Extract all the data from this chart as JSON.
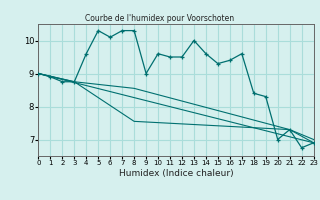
{
  "title": "Courbe de l'humidex pour Voorschoten",
  "xlabel": "Humidex (Indice chaleur)",
  "background_color": "#d6f0ee",
  "grid_color": "#aaddda",
  "line_color": "#007070",
  "xlim": [
    0,
    23
  ],
  "ylim": [
    6.5,
    10.5
  ],
  "yticks": [
    7,
    8,
    9,
    10
  ],
  "xticks": [
    0,
    1,
    2,
    3,
    4,
    5,
    6,
    7,
    8,
    9,
    10,
    11,
    12,
    13,
    14,
    15,
    16,
    17,
    18,
    19,
    20,
    21,
    22,
    23
  ],
  "series1_x": [
    0,
    1,
    2,
    3,
    4,
    5,
    6,
    7,
    8,
    9,
    10,
    11,
    12,
    13,
    14,
    15,
    16,
    17,
    18,
    19,
    20,
    21,
    22,
    23
  ],
  "series1_y": [
    9.0,
    8.9,
    8.75,
    8.75,
    9.6,
    10.3,
    10.1,
    10.3,
    10.3,
    9.0,
    9.6,
    9.5,
    9.5,
    10.0,
    9.6,
    9.3,
    9.4,
    9.6,
    8.4,
    8.3,
    7.0,
    7.3,
    6.75,
    6.9
  ],
  "series2_x": [
    0,
    3,
    8,
    21,
    23
  ],
  "series2_y": [
    9.0,
    8.75,
    7.55,
    7.3,
    6.9
  ],
  "series3_x": [
    0,
    23
  ],
  "series3_y": [
    9.0,
    6.9
  ],
  "series4_x": [
    0,
    3,
    8,
    21,
    23
  ],
  "series4_y": [
    9.0,
    8.75,
    8.55,
    7.3,
    7.0
  ]
}
